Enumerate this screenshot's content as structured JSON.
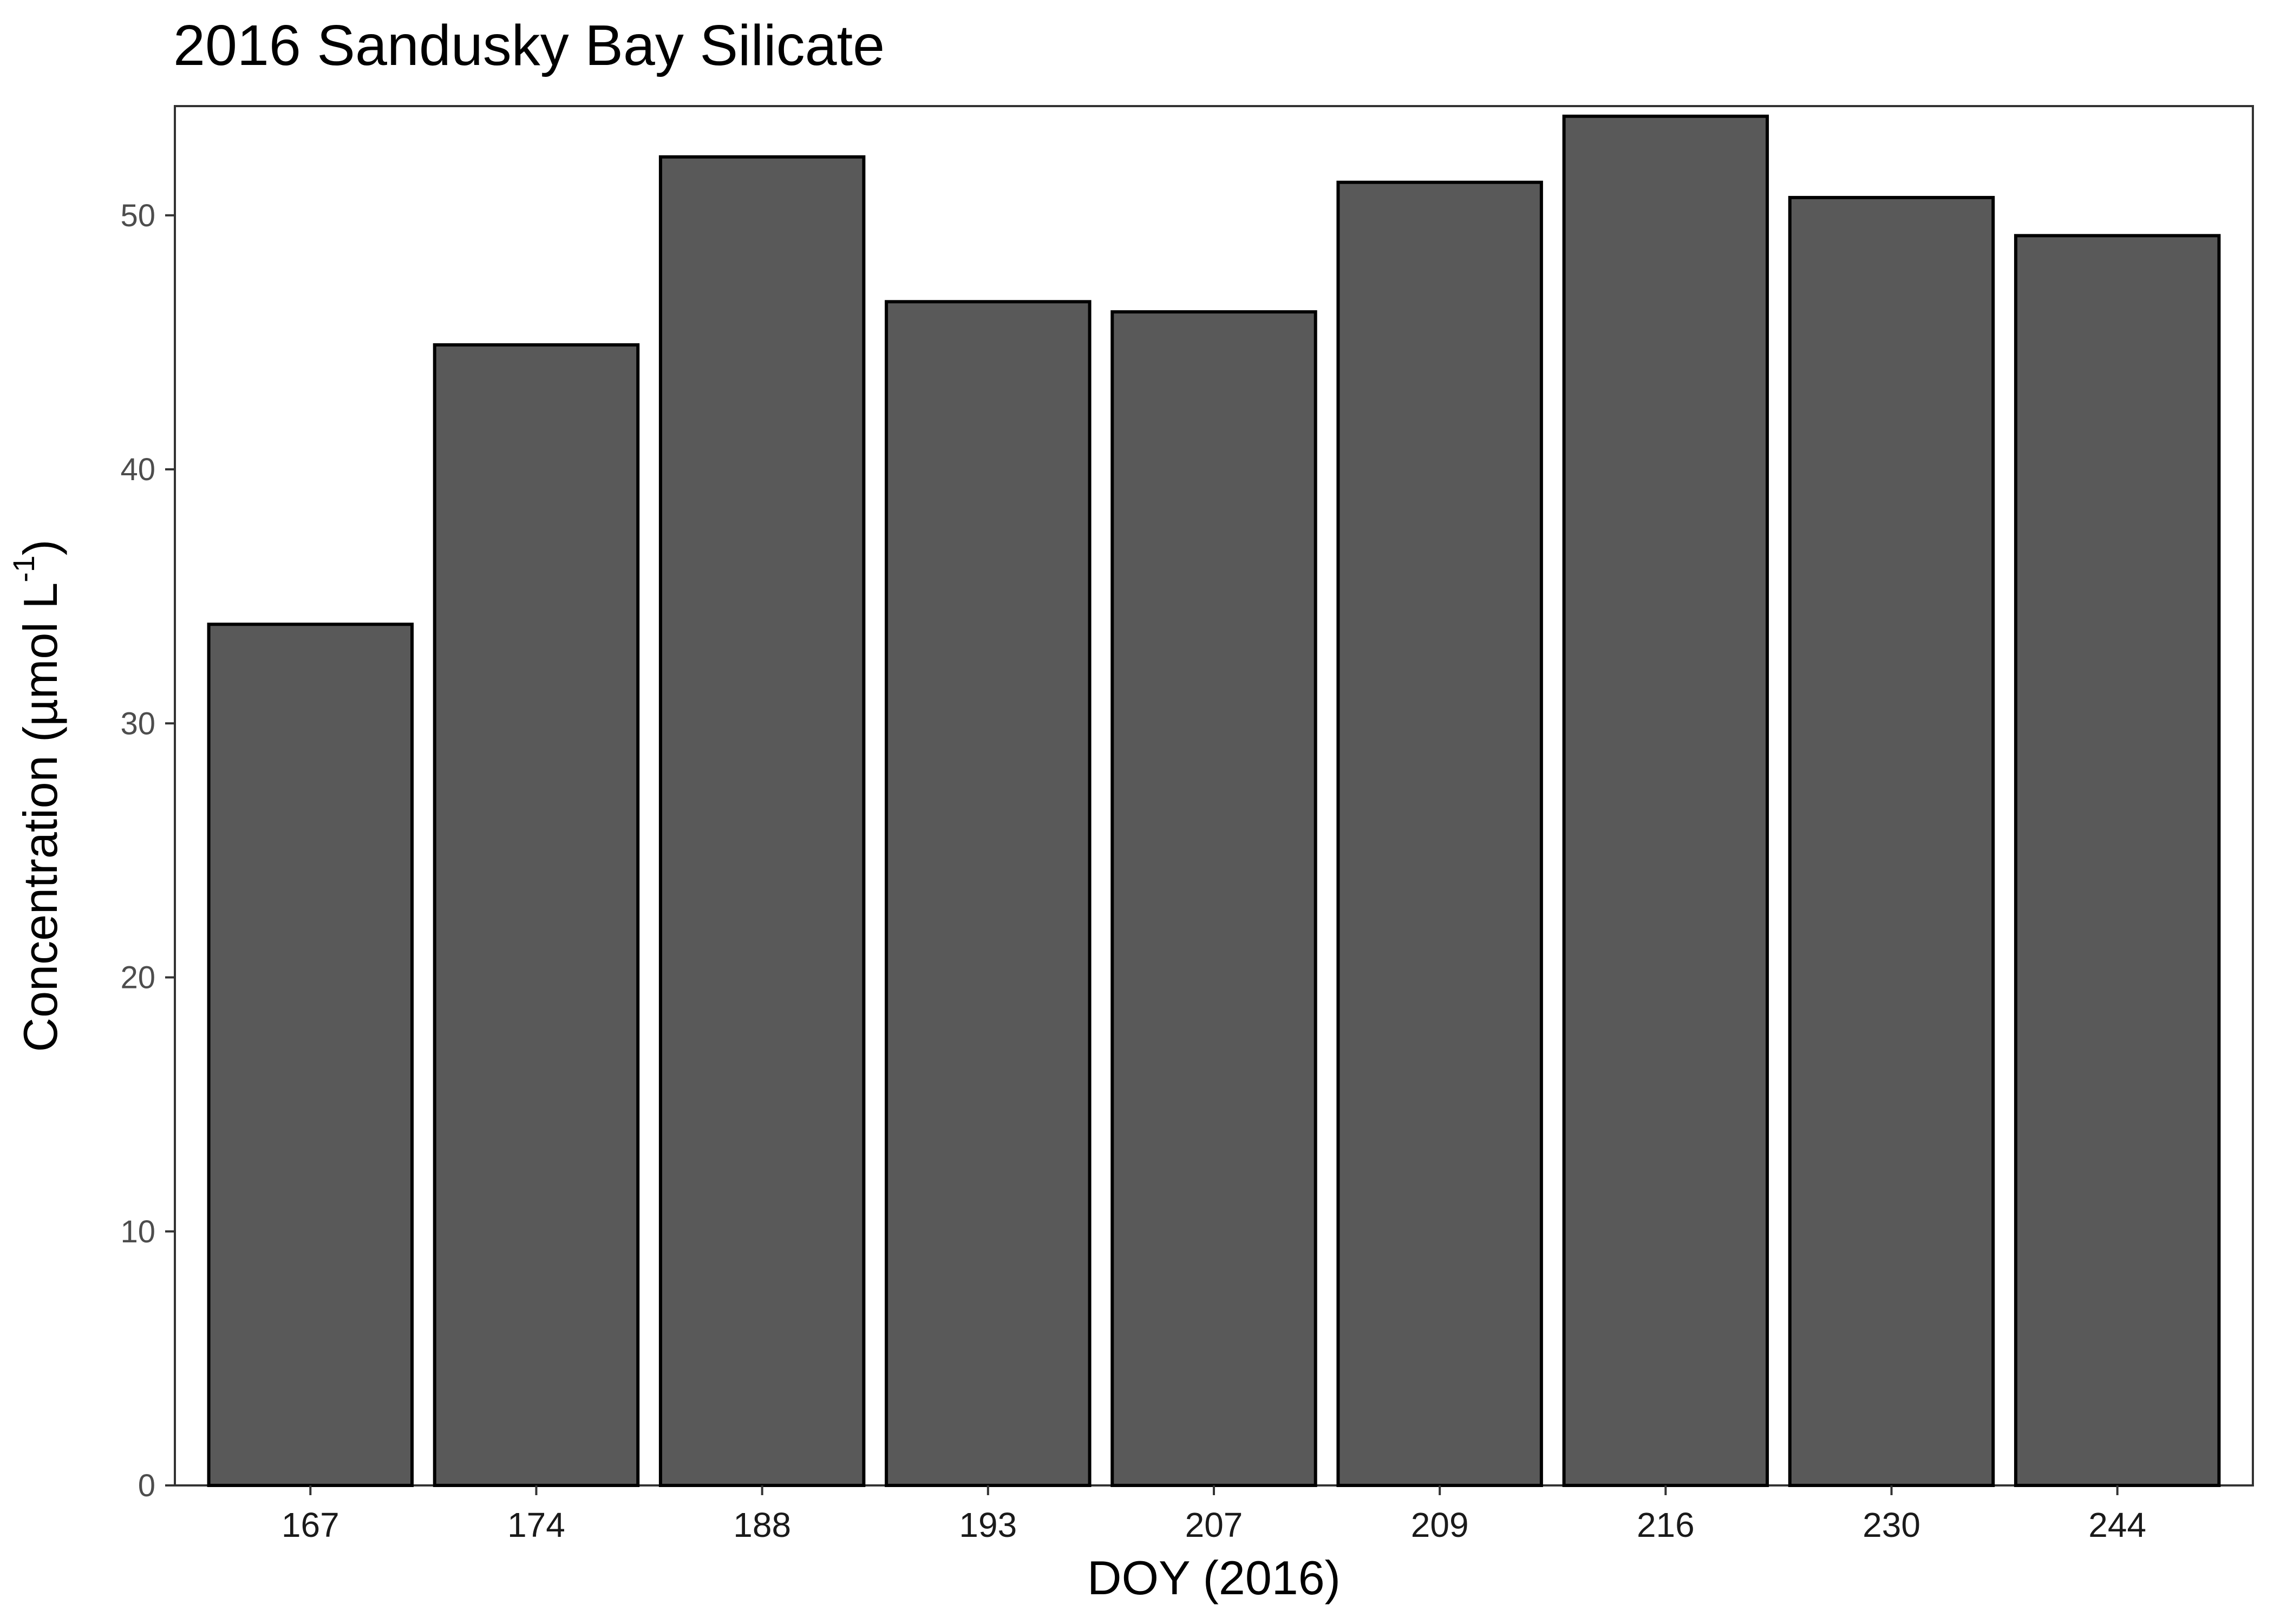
{
  "chart_data": {
    "type": "bar",
    "title": "2016 Sandusky Bay Silicate",
    "xlabel": "DOY (2016)",
    "ylabel": {
      "prefix": "Concentration (µmol L",
      "superscript": "-1",
      "suffix": ")"
    },
    "categories": [
      "167",
      "174",
      "188",
      "193",
      "207",
      "209",
      "216",
      "230",
      "244"
    ],
    "values": [
      33.9,
      44.9,
      52.3,
      46.6,
      46.2,
      51.3,
      53.9,
      50.7,
      49.2
    ],
    "ylim": [
      0,
      54.3
    ],
    "yticks": [
      0,
      10,
      20,
      30,
      40,
      50
    ],
    "grid": false,
    "legend": "none",
    "colors": {
      "bar_fill": "#595959",
      "bar_stroke": "#000000",
      "panel_border": "#333333",
      "axis_tick": "#333333"
    }
  }
}
